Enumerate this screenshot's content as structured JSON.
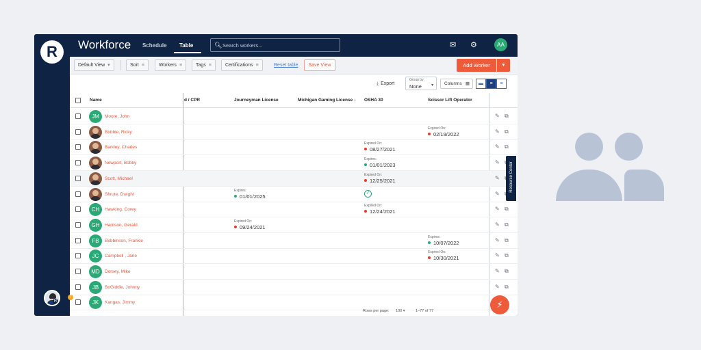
{
  "app": {
    "logo_letter": "R",
    "title": "Workforce",
    "brand_color": "#0f2444",
    "accent_color": "#ee5b3b"
  },
  "nav_tabs": [
    {
      "label": "Schedule",
      "active": false
    },
    {
      "label": "Table",
      "active": true
    }
  ],
  "search": {
    "placeholder": "Search workers..."
  },
  "top_icons": [
    "mail-icon",
    "gear-icon"
  ],
  "user": {
    "initials": "AA"
  },
  "toolbar": {
    "default_view": "Default View",
    "sort": "Sort",
    "workers": "Workers",
    "tags": "Tags",
    "certifications": "Certifications",
    "reset": "Reset table",
    "save_view": "Save View",
    "add_worker": "Add Worker"
  },
  "subbar": {
    "export": "Export",
    "group_by_label": "Group by",
    "group_by_value": "None",
    "columns": "Columns"
  },
  "columns": [
    "Name",
    "d / CPR",
    "Journeyman License",
    "Michigan Gaming License",
    "OSHA 30",
    "Scissor Lift Operator"
  ],
  "rows": [
    {
      "initials": "JM",
      "name": "Moore, John",
      "photo": false
    },
    {
      "initials": "",
      "name": "Bobbie, Ricky",
      "photo": true,
      "scissor": {
        "label": "Expired On:",
        "date": "02/19/2022",
        "status": "red"
      }
    },
    {
      "initials": "",
      "name": "Barkley, Charles",
      "photo": true,
      "osha": {
        "label": "Expired On:",
        "date": "08/27/2021",
        "status": "red"
      }
    },
    {
      "initials": "",
      "name": "Newport, Bobby",
      "photo": true,
      "osha": {
        "label": "Expires:",
        "date": "01/01/2023",
        "status": "green"
      }
    },
    {
      "initials": "",
      "name": "Scott, Michael",
      "photo": true,
      "osha": {
        "label": "Expired On:",
        "date": "12/25/2021",
        "status": "red"
      }
    },
    {
      "initials": "",
      "name": "Shrute, Dwight",
      "photo": true,
      "journeyman": {
        "label": "Expires:",
        "date": "01/01/2025",
        "status": "green"
      },
      "osha_check": true
    },
    {
      "initials": "CH",
      "name": "Hawking, Corey",
      "photo": false,
      "osha": {
        "label": "Expired On:",
        "date": "12/24/2021",
        "status": "red"
      }
    },
    {
      "initials": "GH",
      "name": "Harrison, Gerald",
      "photo": false,
      "journeyman": {
        "label": "Expired On:",
        "date": "09/24/2021",
        "status": "red"
      }
    },
    {
      "initials": "FB",
      "name": "Bobbinson, Frankie",
      "photo": false,
      "scissor": {
        "label": "Expires:",
        "date": "10/07/2022",
        "status": "green"
      }
    },
    {
      "initials": "JC",
      "name": "Campbell , Jane",
      "photo": false,
      "scissor": {
        "label": "Expired On:",
        "date": "10/30/2021",
        "status": "red"
      }
    },
    {
      "initials": "MD",
      "name": "Dorsey, Mike",
      "photo": false
    },
    {
      "initials": "JB",
      "name": "BoGiddle, Johnny",
      "photo": false
    },
    {
      "initials": "JK",
      "name": "Kangas, Jimmy",
      "photo": false
    }
  ],
  "status_colors": {
    "red": "#e8392b",
    "green": "#2aa876"
  },
  "resource_center": "Resource Center",
  "footer": {
    "rows_per_page_label": "Rows per page:",
    "rows_per_page": "100",
    "range": "1–77 of 77"
  },
  "notification_count": "7"
}
